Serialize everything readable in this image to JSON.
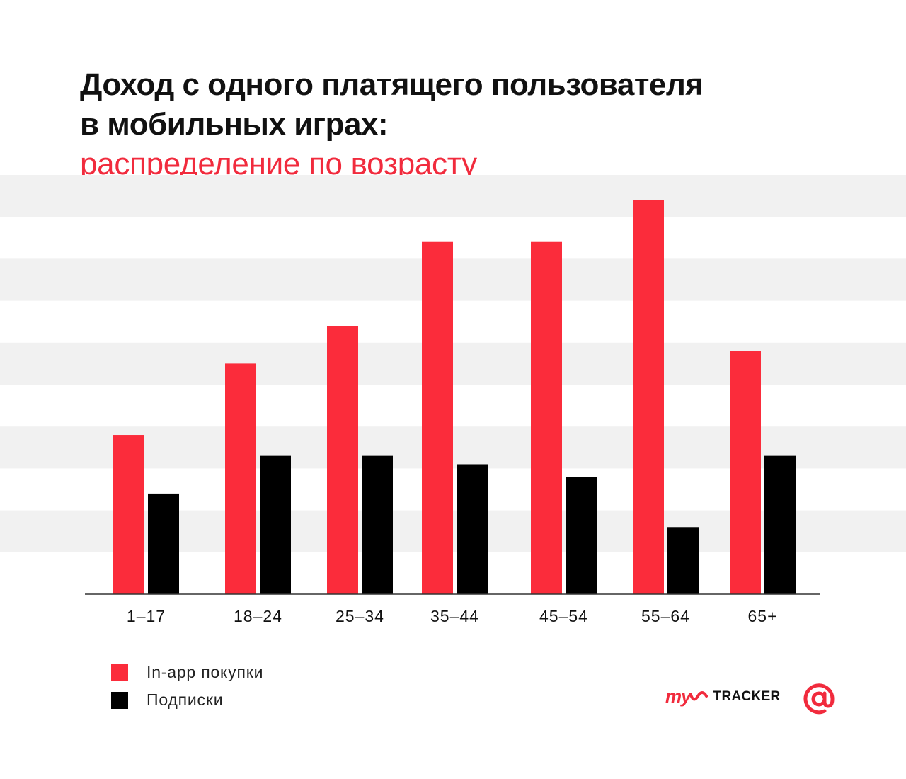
{
  "title": {
    "line1": "Доход с одного платящего пользователя",
    "line2": "в мобильных играх:",
    "subtitle": "распределение по возрасту"
  },
  "colors": {
    "inapp": "#fb2c3b",
    "subscriptions": "#000000",
    "accent": "#f12b3d",
    "band": "#f1f1f1"
  },
  "chart_data": {
    "type": "bar",
    "title": "Доход с одного платящего пользователя в мобильных играх: распределение по возрасту",
    "categories": [
      "1–17",
      "18–24",
      "25–34",
      "35–44",
      "45–54",
      "55–64",
      "65+"
    ],
    "series": [
      {
        "name": "In-app покупки",
        "values": [
          3.8,
          5.5,
          6.4,
          8.4,
          8.4,
          9.4,
          5.8
        ]
      },
      {
        "name": "Подписки",
        "values": [
          2.4,
          3.3,
          3.3,
          3.1,
          2.8,
          1.6,
          3.3
        ]
      }
    ],
    "ylim": [
      0,
      10
    ],
    "grid": "horizontal bands",
    "legend": "bottom-left",
    "y_axis_labels": "none"
  },
  "legend": {
    "items": [
      {
        "label": "In-app покупки"
      },
      {
        "label": "Подписки"
      }
    ]
  },
  "branding": {
    "my": "my",
    "tracker": "TRACKER",
    "mail_icon": "at-sign-icon"
  }
}
